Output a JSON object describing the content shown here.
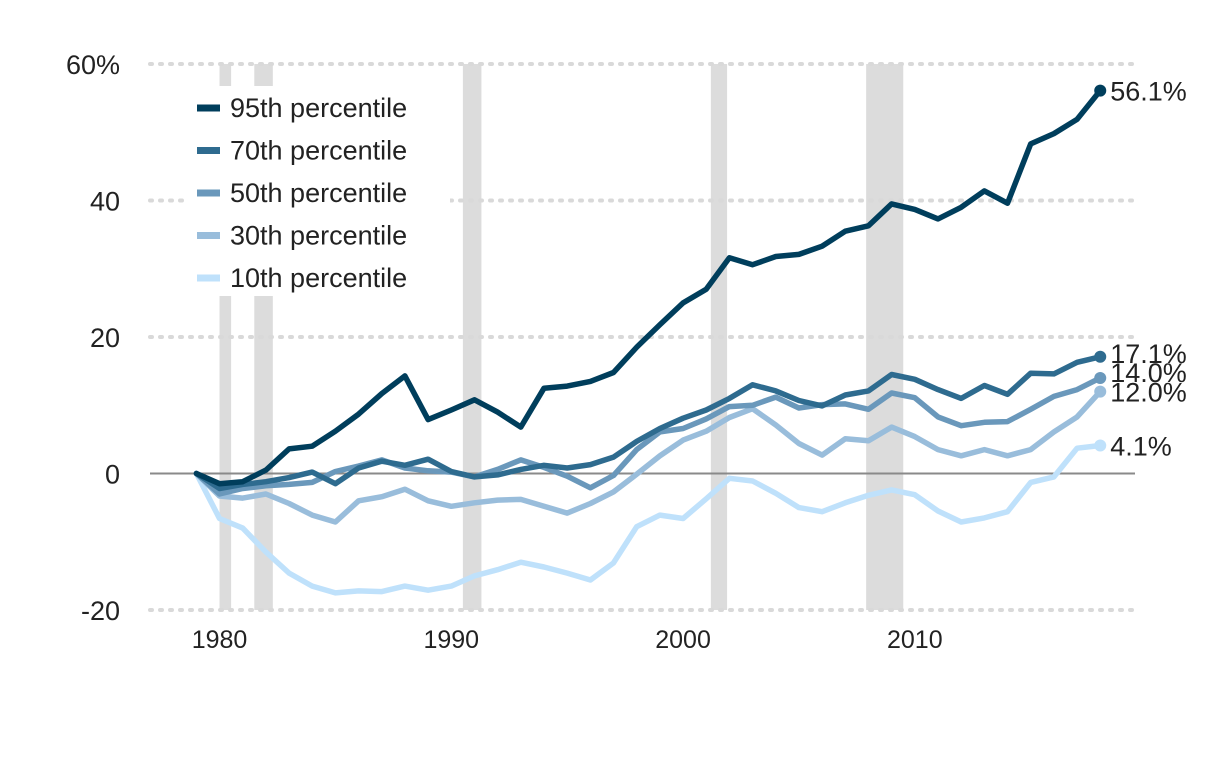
{
  "chart_data": {
    "type": "line",
    "title": "",
    "xlabel": "",
    "ylabel": "",
    "xlim": [
      1977,
      2019.5
    ],
    "ylim": [
      -20,
      60
    ],
    "x_ticks": [
      1980,
      1990,
      2000,
      2010
    ],
    "y_ticks": [
      {
        "value": 60,
        "label": "60%"
      },
      {
        "value": 40,
        "label": "40"
      },
      {
        "value": 20,
        "label": "20"
      },
      {
        "value": 0,
        "label": "0"
      },
      {
        "value": -20,
        "label": "-20"
      }
    ],
    "grid": "horizontal-dotted",
    "legend_position": "top-left",
    "recession_bands": [
      [
        1980.0,
        1980.5
      ],
      [
        1981.5,
        1982.3
      ],
      [
        1990.5,
        1991.3
      ],
      [
        2001.2,
        2001.9
      ],
      [
        2007.9,
        2009.5
      ]
    ],
    "x": [
      1979,
      1980,
      1981,
      1982,
      1983,
      1984,
      1985,
      1986,
      1987,
      1988,
      1989,
      1990,
      1991,
      1992,
      1993,
      1994,
      1995,
      1996,
      1997,
      1998,
      1999,
      2000,
      2001,
      2002,
      2003,
      2004,
      2005,
      2006,
      2007,
      2008,
      2009,
      2010,
      2011,
      2012,
      2013,
      2014,
      2015,
      2016,
      2017,
      2018
    ],
    "series": [
      {
        "name": "95th percentile",
        "color": "#003e5c",
        "end_label": "56.1%",
        "values": [
          0,
          -1.5,
          -1.2,
          0.5,
          3.6,
          4.0,
          6.2,
          8.7,
          11.7,
          14.3,
          7.9,
          9.3,
          10.8,
          9.0,
          6.8,
          12.5,
          12.8,
          13.5,
          14.8,
          18.5,
          21.8,
          25.0,
          27.0,
          31.6,
          30.6,
          31.8,
          32.1,
          33.3,
          35.5,
          36.3,
          39.5,
          38.7,
          37.3,
          39.0,
          41.4,
          39.6,
          48.3,
          49.8,
          51.9,
          56.1
        ]
      },
      {
        "name": "70th percentile",
        "color": "#2e6b8f",
        "end_label": "17.1%",
        "values": [
          0,
          -2.2,
          -1.6,
          -1.2,
          -0.6,
          0.2,
          -1.5,
          0.8,
          1.8,
          1.2,
          2.1,
          0.3,
          -0.5,
          -0.2,
          0.6,
          1.2,
          0.8,
          1.3,
          2.4,
          4.7,
          6.6,
          8.1,
          9.3,
          11.0,
          13.0,
          12.1,
          10.7,
          9.9,
          11.5,
          12.1,
          14.5,
          13.8,
          12.3,
          11.0,
          12.9,
          11.6,
          14.7,
          14.6,
          16.3,
          17.1
        ]
      },
      {
        "name": "50th percentile",
        "color": "#6a98bb",
        "end_label": "14.0%",
        "values": [
          0,
          -3.0,
          -2.2,
          -1.8,
          -1.6,
          -1.3,
          0.3,
          1.1,
          2.0,
          0.8,
          0.4,
          0.2,
          -0.5,
          0.6,
          2.0,
          0.9,
          -0.4,
          -2.1,
          -0.3,
          3.5,
          6.1,
          6.6,
          8.0,
          9.8,
          10.0,
          11.2,
          9.6,
          10.1,
          10.2,
          9.4,
          11.8,
          11.1,
          8.3,
          7.0,
          7.5,
          7.6,
          9.4,
          11.3,
          12.3,
          14.0
        ]
      },
      {
        "name": "30th percentile",
        "color": "#99bddb",
        "end_label": "12.0%",
        "values": [
          0,
          -3.3,
          -3.6,
          -3.0,
          -4.4,
          -6.1,
          -7.1,
          -4.0,
          -3.4,
          -2.3,
          -4.0,
          -4.8,
          -4.3,
          -3.9,
          -3.8,
          -4.8,
          -5.8,
          -4.4,
          -2.7,
          -0.1,
          2.6,
          4.9,
          6.2,
          8.2,
          9.5,
          7.1,
          4.4,
          2.7,
          5.1,
          4.8,
          6.8,
          5.4,
          3.5,
          2.6,
          3.5,
          2.6,
          3.5,
          6.1,
          8.3,
          12.0
        ]
      },
      {
        "name": "10th percentile",
        "color": "#bfe1fb",
        "end_label": "4.1%",
        "values": [
          0,
          -6.6,
          -8.0,
          -11.5,
          -14.6,
          -16.5,
          -17.5,
          -17.2,
          -17.3,
          -16.5,
          -17.1,
          -16.5,
          -15.0,
          -14.1,
          -13.0,
          -13.7,
          -14.6,
          -15.6,
          -13.1,
          -7.8,
          -6.1,
          -6.6,
          -3.7,
          -0.7,
          -1.1,
          -2.9,
          -5.0,
          -5.6,
          -4.3,
          -3.2,
          -2.4,
          -3.1,
          -5.5,
          -7.1,
          -6.5,
          -5.6,
          -1.3,
          -0.5,
          3.7,
          4.1
        ]
      }
    ]
  }
}
